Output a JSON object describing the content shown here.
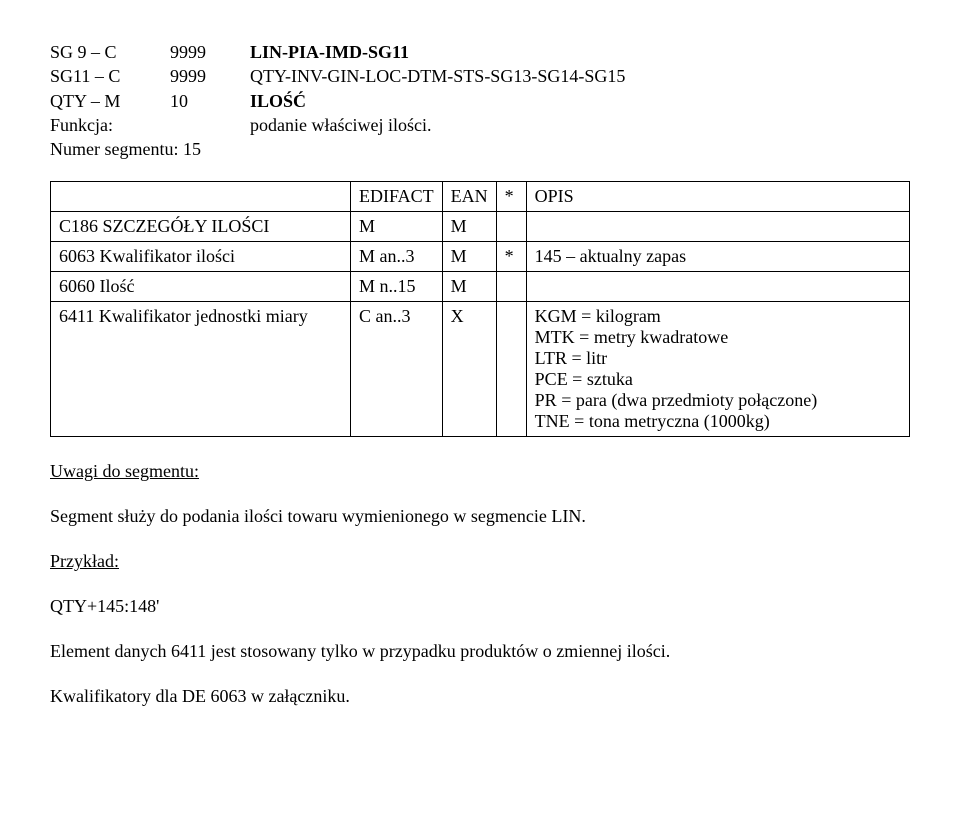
{
  "header": {
    "r1": {
      "c1": "SG 9 – C",
      "c2": "9999",
      "c3": "LIN-PIA-IMD-SG11"
    },
    "r2": {
      "c1": "SG11 – C",
      "c2": "9999",
      "c3": "QTY-INV-GIN-LOC-DTM-STS-SG13-SG14-SG15"
    },
    "r3": {
      "c1": "QTY – M",
      "c2": "10",
      "c3": "ILOŚĆ"
    },
    "r4": {
      "label": "Funkcja:",
      "value": "podanie właściwej ilości."
    },
    "r5": {
      "label": "Numer segmentu: 15",
      "value": ""
    }
  },
  "table": {
    "head": {
      "label": "",
      "a": "EDIFACT",
      "b": "EAN",
      "c": "*",
      "desc": "OPIS"
    },
    "rows": [
      {
        "label": "C186  SZCZEGÓŁY ILOŚCI",
        "a": "M",
        "b": "M",
        "c": "",
        "desc": ""
      },
      {
        "label": "  6063 Kwalifikator ilości",
        "a": "M   an..3",
        "b": "M",
        "c": "*",
        "desc": "145 – aktualny zapas"
      },
      {
        "label": "  6060 Ilość",
        "a": "M   n..15",
        "b": "M",
        "c": "",
        "desc": ""
      },
      {
        "label": "  6411 Kwalifikator jednostki miary",
        "a": "C   an..3",
        "b": "X",
        "c": "",
        "desc": "KGM = kilogram\nMTK = metry kwadratowe\nLTR = litr\nPCE = sztuka\nPR = para (dwa przedmioty połączone)\nTNE = tona metryczna (1000kg)"
      }
    ]
  },
  "body": {
    "uwagi_title": "Uwagi do segmentu:",
    "p1": "Segment służy do podania ilości towaru wymienionego w segmencie LIN.",
    "przyklad_title": "Przykład:",
    "p2": "QTY+145:148'",
    "p3": "Element danych 6411 jest stosowany tylko w przypadku produktów o zmiennej ilości.",
    "p4": "Kwalifikatory dla DE 6063 w załączniku."
  }
}
